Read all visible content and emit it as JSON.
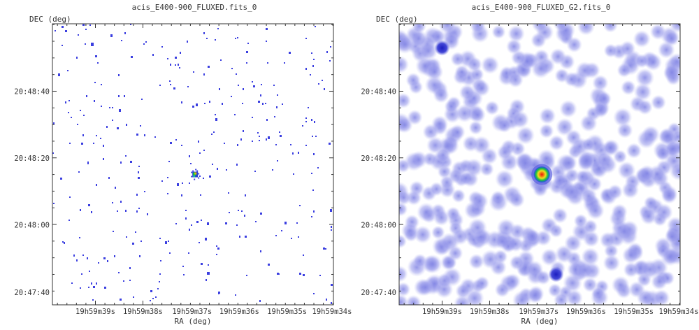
{
  "chart_data": [
    {
      "type": "heatmap",
      "title": "acis_E400-900_FLUXED.fits_0",
      "xlabel": "RA (deg)",
      "ylabel": "DEC (deg)",
      "x_ticks": [
        "19h59m39s",
        "19h59m38s",
        "19h59m37s",
        "19h59m36s",
        "19h59m35s",
        "19h59m34s"
      ],
      "y_ticks": [
        "20:48:40",
        "20:48:20",
        "20:48:00",
        "20:47:40"
      ],
      "style": "sparse-pixels",
      "colors": {
        "photon": "#3b3fe0",
        "bright": "#00cc44",
        "peak": "#e0c000",
        "background": "#ffffff"
      },
      "sources": [
        {
          "ra": "19h59m36.9s",
          "dec": "20:48:15",
          "brightness": "high"
        }
      ]
    },
    {
      "type": "heatmap",
      "title": "acis_E400-900_FLUXED_G2.fits_0",
      "xlabel": "RA (deg)",
      "ylabel": "DEC (deg)",
      "x_ticks": [
        "19h59m39s",
        "19h59m38s",
        "19h59m37s",
        "19h59m36s",
        "19h59m35s",
        "19h59m34s"
      ],
      "y_ticks": [
        "20:48:40",
        "20:48:20",
        "20:48:00",
        "20:47:40"
      ],
      "style": "gaussian-smoothed",
      "colors": {
        "blob": "#8c8ce6",
        "blob_dark": "#4e53c8",
        "core": "#e02010",
        "mid": "#f0e020",
        "outer": "#20c040",
        "background": "#ffffff"
      },
      "sources": [
        {
          "ra": "19h59m36.9s",
          "dec": "20:48:15",
          "brightness": "high"
        },
        {
          "ra": "19h59m36.6s",
          "dec": "20:47:45",
          "brightness": "medium"
        },
        {
          "ra": "19h59m39.0s",
          "dec": "20:48:53",
          "brightness": "medium"
        }
      ]
    }
  ]
}
